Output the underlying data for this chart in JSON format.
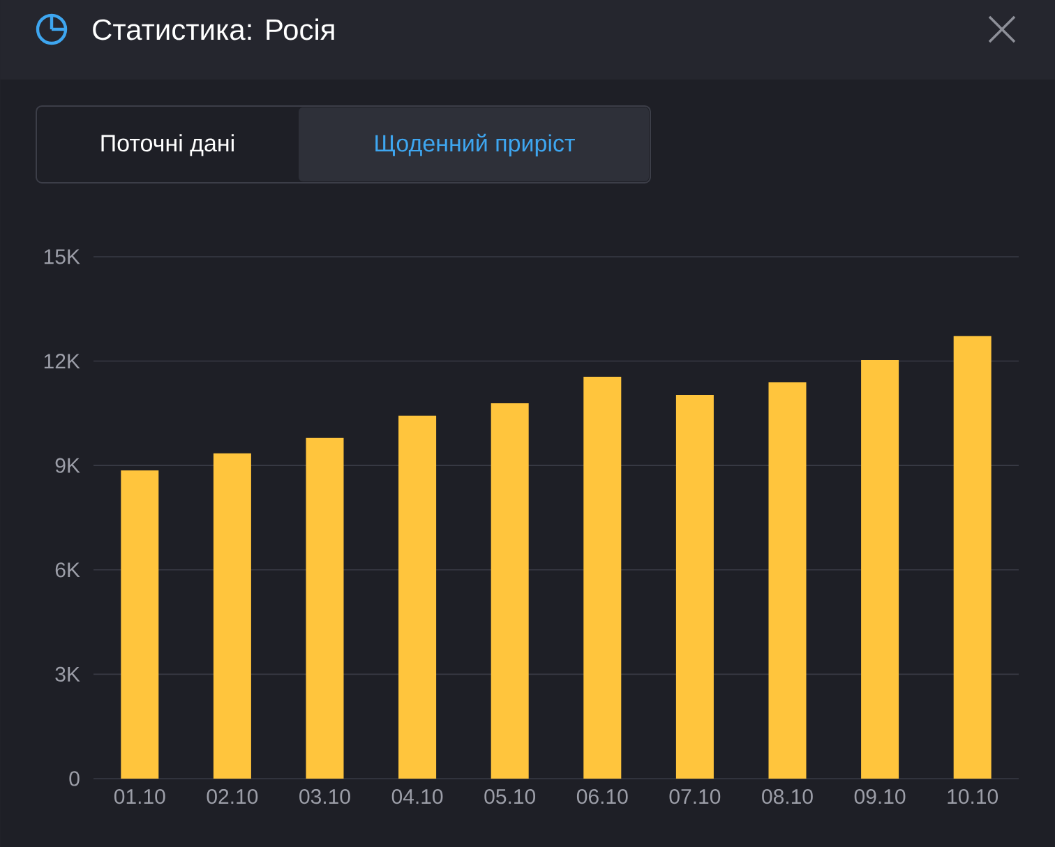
{
  "chart_data": {
    "type": "bar",
    "title": "Статистика: Росія",
    "annotations": [
      "Поточні дані",
      "Щоденний приріст"
    ],
    "categories": [
      "01.10",
      "02.10",
      "03.10",
      "04.10",
      "05.10",
      "06.10",
      "07.10",
      "08.10",
      "09.10",
      "10.10"
    ],
    "values": [
      8860,
      9350,
      9790,
      10430,
      10790,
      11550,
      11030,
      11390,
      12030,
      12720
    ],
    "color": "#ffc53d",
    "ylim": [
      0,
      15000
    ],
    "yticks": [
      {
        "value": 0,
        "label": "0"
      },
      {
        "value": 3000,
        "label": "3K"
      },
      {
        "value": 6000,
        "label": "6K"
      },
      {
        "value": 9000,
        "label": "9K"
      },
      {
        "value": 12000,
        "label": "12K"
      },
      {
        "value": 15000,
        "label": "15K"
      }
    ],
    "grid": "y"
  }
}
